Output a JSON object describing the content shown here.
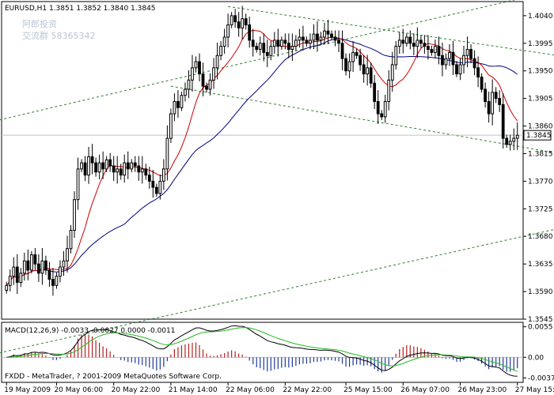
{
  "chart_data": {
    "type": "candlestick",
    "symbol_header": "EURUSD,H1  1.3851 1.3852 1.3840 1.3845",
    "watermark": [
      "阿郎投资",
      "交流群 58365342"
    ],
    "footer": "FXDD - MetaTrader, ? 2001-2009 MetaQuotes Software Corp.",
    "last_price_label": "1.3845",
    "last_price": 1.3845,
    "price_ylim": [
      1.3545,
      1.4063
    ],
    "price_ticks": [
      {
        "label": "1.4040",
        "value": 1.404
      },
      {
        "label": "1.3995",
        "value": 1.3995
      },
      {
        "label": "1.3950",
        "value": 1.395
      },
      {
        "label": "1.3905",
        "value": 1.3905
      },
      {
        "label": "1.3860",
        "value": 1.386
      },
      {
        "label": "1.3815",
        "value": 1.3815
      },
      {
        "label": "1.3770",
        "value": 1.377
      },
      {
        "label": "1.3725",
        "value": 1.3725
      },
      {
        "label": "1.3680",
        "value": 1.368
      },
      {
        "label": "1.3635",
        "value": 1.3635
      },
      {
        "label": "1.3590",
        "value": 1.359
      },
      {
        "label": "1.3545",
        "value": 1.3545
      }
    ],
    "x_ticks": [
      {
        "label": "19 May 2009",
        "bar": 0
      },
      {
        "label": "20 May 06:00",
        "bar": 14
      },
      {
        "label": "20 May 22:00",
        "bar": 30
      },
      {
        "label": "21 May 14:00",
        "bar": 46
      },
      {
        "label": "22 May 06:00",
        "bar": 62
      },
      {
        "label": "22 May 22:00",
        "bar": 78
      },
      {
        "label": "25 May 15:00",
        "bar": 95
      },
      {
        "label": "26 May 07:00",
        "bar": 111
      },
      {
        "label": "26 May 23:00",
        "bar": 127
      },
      {
        "label": "27 May 15:00",
        "bar": 143
      }
    ],
    "closes": [
      1.36,
      1.3615,
      1.363,
      1.3605,
      1.362,
      1.364,
      1.3625,
      1.365,
      1.3635,
      1.362,
      1.364,
      1.3625,
      1.361,
      1.36,
      1.3615,
      1.363,
      1.364,
      1.366,
      1.369,
      1.374,
      1.379,
      1.38,
      1.378,
      1.381,
      1.38,
      1.3785,
      1.38,
      1.379,
      1.3805,
      1.3795,
      1.3785,
      1.379,
      1.378,
      1.38,
      1.379,
      1.38,
      1.3795,
      1.3785,
      1.379,
      1.378,
      1.377,
      1.376,
      1.375,
      1.377,
      1.379,
      1.384,
      1.388,
      1.39,
      1.389,
      1.391,
      1.392,
      1.3935,
      1.3955,
      1.3965,
      1.3945,
      1.3925,
      1.392,
      1.3935,
      1.3955,
      1.3975,
      1.399,
      1.4005,
      1.4025,
      1.404,
      1.403,
      1.402,
      1.4035,
      1.4025,
      1.4,
      1.399,
      1.3985,
      1.3995,
      1.398,
      1.3975,
      1.399,
      1.4,
      1.399,
      1.4,
      1.3995,
      1.3985,
      1.399,
      1.4,
      1.4005,
      1.4,
      1.3995,
      1.4,
      1.401,
      1.4,
      1.4005,
      1.4015,
      1.401,
      1.4005,
      1.4,
      1.3995,
      1.397,
      1.395,
      1.3965,
      1.398,
      1.3975,
      1.396,
      1.3945,
      1.3955,
      1.393,
      1.39,
      1.388,
      1.3875,
      1.39,
      1.3935,
      1.396,
      1.399,
      1.4,
      1.3995,
      1.4005,
      1.3995,
      1.399,
      1.4,
      1.3995,
      1.399,
      1.3985,
      1.398,
      1.399,
      1.3975,
      1.396,
      1.397,
      1.398,
      1.396,
      1.3945,
      1.396,
      1.3975,
      1.3985,
      1.397,
      1.3955,
      1.394,
      1.392,
      1.39,
      1.388,
      1.3915,
      1.3905,
      1.3895,
      1.384,
      1.383,
      1.3835,
      1.384,
      1.3845
    ],
    "trend_lines": [
      {
        "from": [
          -2,
          1.387
        ],
        "to": [
          160,
          1.409
        ],
        "color": "#2e7d32",
        "dash": "3,3"
      },
      {
        "from": [
          62,
          1.4055
        ],
        "to": [
          160,
          1.397
        ],
        "color": "#2e7d32",
        "dash": "3,3"
      },
      {
        "from": [
          46,
          1.3925
        ],
        "to": [
          160,
          1.381
        ],
        "color": "#2e7d32",
        "dash": "3,3"
      },
      {
        "from": [
          -2,
          1.349
        ],
        "to": [
          160,
          1.37
        ],
        "color": "#2e7d32",
        "dash": "3,3"
      }
    ],
    "ma_fast": {
      "period": 10,
      "color": "#cc0000"
    },
    "ma_slow": {
      "period": 34,
      "color": "#00007f"
    },
    "macd": {
      "label": "MACD(12,26,9) -0.0033 -0.0027 0.0000 -0.0011",
      "ylim": [
        -0.0045,
        0.0063
      ],
      "ticks": [
        {
          "label": "0.0055",
          "value": 0.0055
        },
        {
          "label": "0.00",
          "value": 0.0
        },
        {
          "label": "-0.0037",
          "value": -0.0037
        }
      ],
      "pos_color": "#b22222",
      "neg_color": "#1f3a93",
      "line_color": "#000000",
      "signal_color": "#22b822"
    }
  }
}
